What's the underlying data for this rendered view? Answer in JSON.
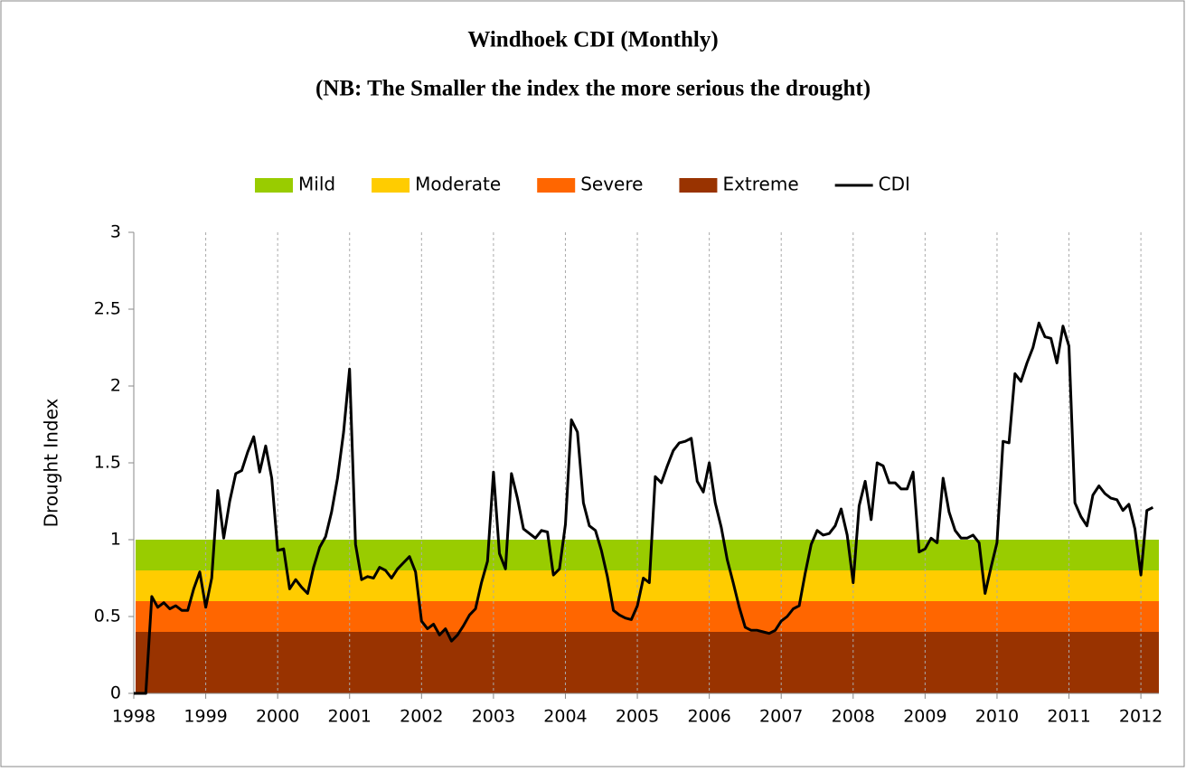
{
  "chart_data": {
    "type": "line",
    "title": "Windhoek CDI  (Monthly)",
    "subtitle": "(NB: The Smaller the index the more serious the drought)",
    "y_label": "Drought Index",
    "xlim": [
      1998,
      2012.25
    ],
    "xticks": [
      1998,
      1999,
      2000,
      2001,
      2002,
      2003,
      2004,
      2005,
      2006,
      2007,
      2008,
      2009,
      2010,
      2011,
      2012
    ],
    "ylim": [
      0,
      3
    ],
    "yticks": [
      0,
      0.5,
      1,
      1.5,
      2,
      2.5,
      3
    ],
    "grid": "x",
    "legend": "top",
    "bands": [
      {
        "name": "Mild",
        "color": "#99cc00",
        "range": [
          0.8,
          1
        ]
      },
      {
        "name": "Moderate",
        "color": "#ffcc00",
        "range": [
          0.6,
          0.8
        ]
      },
      {
        "name": "Severe",
        "color": "#ff6600",
        "range": [
          0.4,
          0.6
        ]
      },
      {
        "name": "Extreme",
        "color": "#993300",
        "range": [
          0,
          0.4
        ]
      }
    ],
    "x": [
      1998,
      1998.083,
      1998.167,
      1998.25,
      1998.333,
      1998.417,
      1998.5,
      1998.583,
      1998.667,
      1998.75,
      1998.833,
      1998.917,
      1999,
      1999.083,
      1999.167,
      1999.25,
      1999.333,
      1999.417,
      1999.5,
      1999.583,
      1999.667,
      1999.75,
      1999.833,
      1999.917,
      2000,
      2000.083,
      2000.167,
      2000.25,
      2000.333,
      2000.417,
      2000.5,
      2000.583,
      2000.667,
      2000.75,
      2000.833,
      2000.917,
      2001,
      2001.083,
      2001.167,
      2001.25,
      2001.333,
      2001.417,
      2001.5,
      2001.583,
      2001.667,
      2001.75,
      2001.833,
      2001.917,
      2002,
      2002.083,
      2002.167,
      2002.25,
      2002.333,
      2002.417,
      2002.5,
      2002.583,
      2002.667,
      2002.75,
      2002.833,
      2002.917,
      2003,
      2003.083,
      2003.167,
      2003.25,
      2003.333,
      2003.417,
      2003.5,
      2003.583,
      2003.667,
      2003.75,
      2003.833,
      2003.917,
      2004,
      2004.083,
      2004.167,
      2004.25,
      2004.333,
      2004.417,
      2004.5,
      2004.583,
      2004.667,
      2004.75,
      2004.833,
      2004.917,
      2005,
      2005.083,
      2005.167,
      2005.25,
      2005.333,
      2005.417,
      2005.5,
      2005.583,
      2005.667,
      2005.75,
      2005.833,
      2005.917,
      2006,
      2006.083,
      2006.167,
      2006.25,
      2006.333,
      2006.417,
      2006.5,
      2006.583,
      2006.667,
      2006.75,
      2006.833,
      2006.917,
      2007,
      2007.083,
      2007.167,
      2007.25,
      2007.333,
      2007.417,
      2007.5,
      2007.583,
      2007.667,
      2007.75,
      2007.833,
      2007.917,
      2008,
      2008.083,
      2008.167,
      2008.25,
      2008.333,
      2008.417,
      2008.5,
      2008.583,
      2008.667,
      2008.75,
      2008.833,
      2008.917,
      2009,
      2009.083,
      2009.167,
      2009.25,
      2009.333,
      2009.417,
      2009.5,
      2009.583,
      2009.667,
      2009.75,
      2009.833,
      2009.917,
      2010,
      2010.083,
      2010.167,
      2010.25,
      2010.333,
      2010.417,
      2010.5,
      2010.583,
      2010.667,
      2010.75,
      2010.833,
      2010.917,
      2011,
      2011.083,
      2011.167,
      2011.25,
      2011.333,
      2011.417,
      2011.5,
      2011.583,
      2011.667,
      2011.75,
      2011.833,
      2011.917,
      2012,
      2012.083,
      2012.167
    ],
    "series": [
      {
        "name": "CDI",
        "color": "#000000",
        "values": [
          0,
          0,
          0,
          0.63,
          0.56,
          0.59,
          0.55,
          0.57,
          0.54,
          0.54,
          0.68,
          0.79,
          0.56,
          0.75,
          1.32,
          1.01,
          1.25,
          1.43,
          1.45,
          1.57,
          1.67,
          1.44,
          1.61,
          1.4,
          0.93,
          0.94,
          0.68,
          0.74,
          0.69,
          0.65,
          0.82,
          0.95,
          1.02,
          1.18,
          1.4,
          1.7,
          2.11,
          0.97,
          0.74,
          0.76,
          0.75,
          0.82,
          0.8,
          0.75,
          0.81,
          0.85,
          0.89,
          0.79,
          0.47,
          0.42,
          0.45,
          0.38,
          0.42,
          0.34,
          0.38,
          0.44,
          0.51,
          0.55,
          0.72,
          0.86,
          1.44,
          0.91,
          0.81,
          1.43,
          1.27,
          1.07,
          1.04,
          1.01,
          1.06,
          1.05,
          0.77,
          0.81,
          1.1,
          1.78,
          1.7,
          1.24,
          1.09,
          1.06,
          0.93,
          0.76,
          0.54,
          0.51,
          0.49,
          0.48,
          0.57,
          0.75,
          0.72,
          1.41,
          1.37,
          1.48,
          1.58,
          1.63,
          1.64,
          1.66,
          1.38,
          1.31,
          1.5,
          1.24,
          1.08,
          0.87,
          0.72,
          0.56,
          0.43,
          0.41,
          0.41,
          0.4,
          0.39,
          0.41,
          0.47,
          0.5,
          0.55,
          0.57,
          0.78,
          0.97,
          1.06,
          1.03,
          1.04,
          1.09,
          1.2,
          1.03,
          0.72,
          1.22,
          1.38,
          1.13,
          1.5,
          1.48,
          1.37,
          1.37,
          1.33,
          1.33,
          1.44,
          0.92,
          0.94,
          1.01,
          0.98,
          1.4,
          1.18,
          1.06,
          1.01,
          1.01,
          1.03,
          0.98,
          0.65,
          0.82,
          0.98,
          1.64,
          1.63,
          2.08,
          2.03,
          2.15,
          2.25,
          2.41,
          2.32,
          2.31,
          2.15,
          2.39,
          2.26,
          1.24,
          1.15,
          1.09,
          1.29,
          1.35,
          1.3,
          1.27,
          1.26,
          1.19,
          1.23,
          1.07,
          0.77,
          1.19,
          1.21
        ]
      }
    ]
  }
}
